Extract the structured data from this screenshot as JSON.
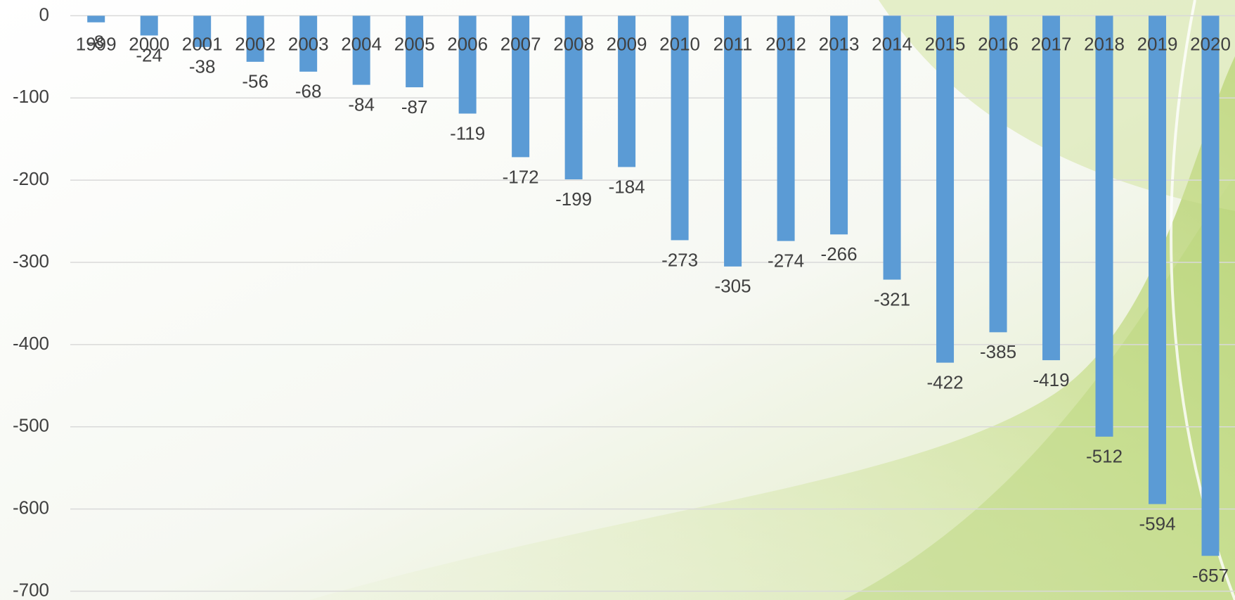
{
  "chart_data": {
    "type": "bar",
    "categories": [
      "1999",
      "2000",
      "2001",
      "2002",
      "2003",
      "2004",
      "2005",
      "2006",
      "2007",
      "2008",
      "2009",
      "2010",
      "2011",
      "2012",
      "2013",
      "2014",
      "2015",
      "2016",
      "2017",
      "2018",
      "2019",
      "2020"
    ],
    "values": [
      -8,
      -24,
      -38,
      -56,
      -68,
      -84,
      -87,
      -119,
      -172,
      -199,
      -184,
      -273,
      -305,
      -274,
      -266,
      -321,
      -422,
      -385,
      -419,
      -512,
      -594,
      -657
    ],
    "color": "#5b9bd5",
    "ylim": [
      -700,
      0
    ],
    "yticks": [
      0,
      -100,
      -200,
      -300,
      -400,
      -500,
      -600,
      -700
    ],
    "grid": true
  }
}
